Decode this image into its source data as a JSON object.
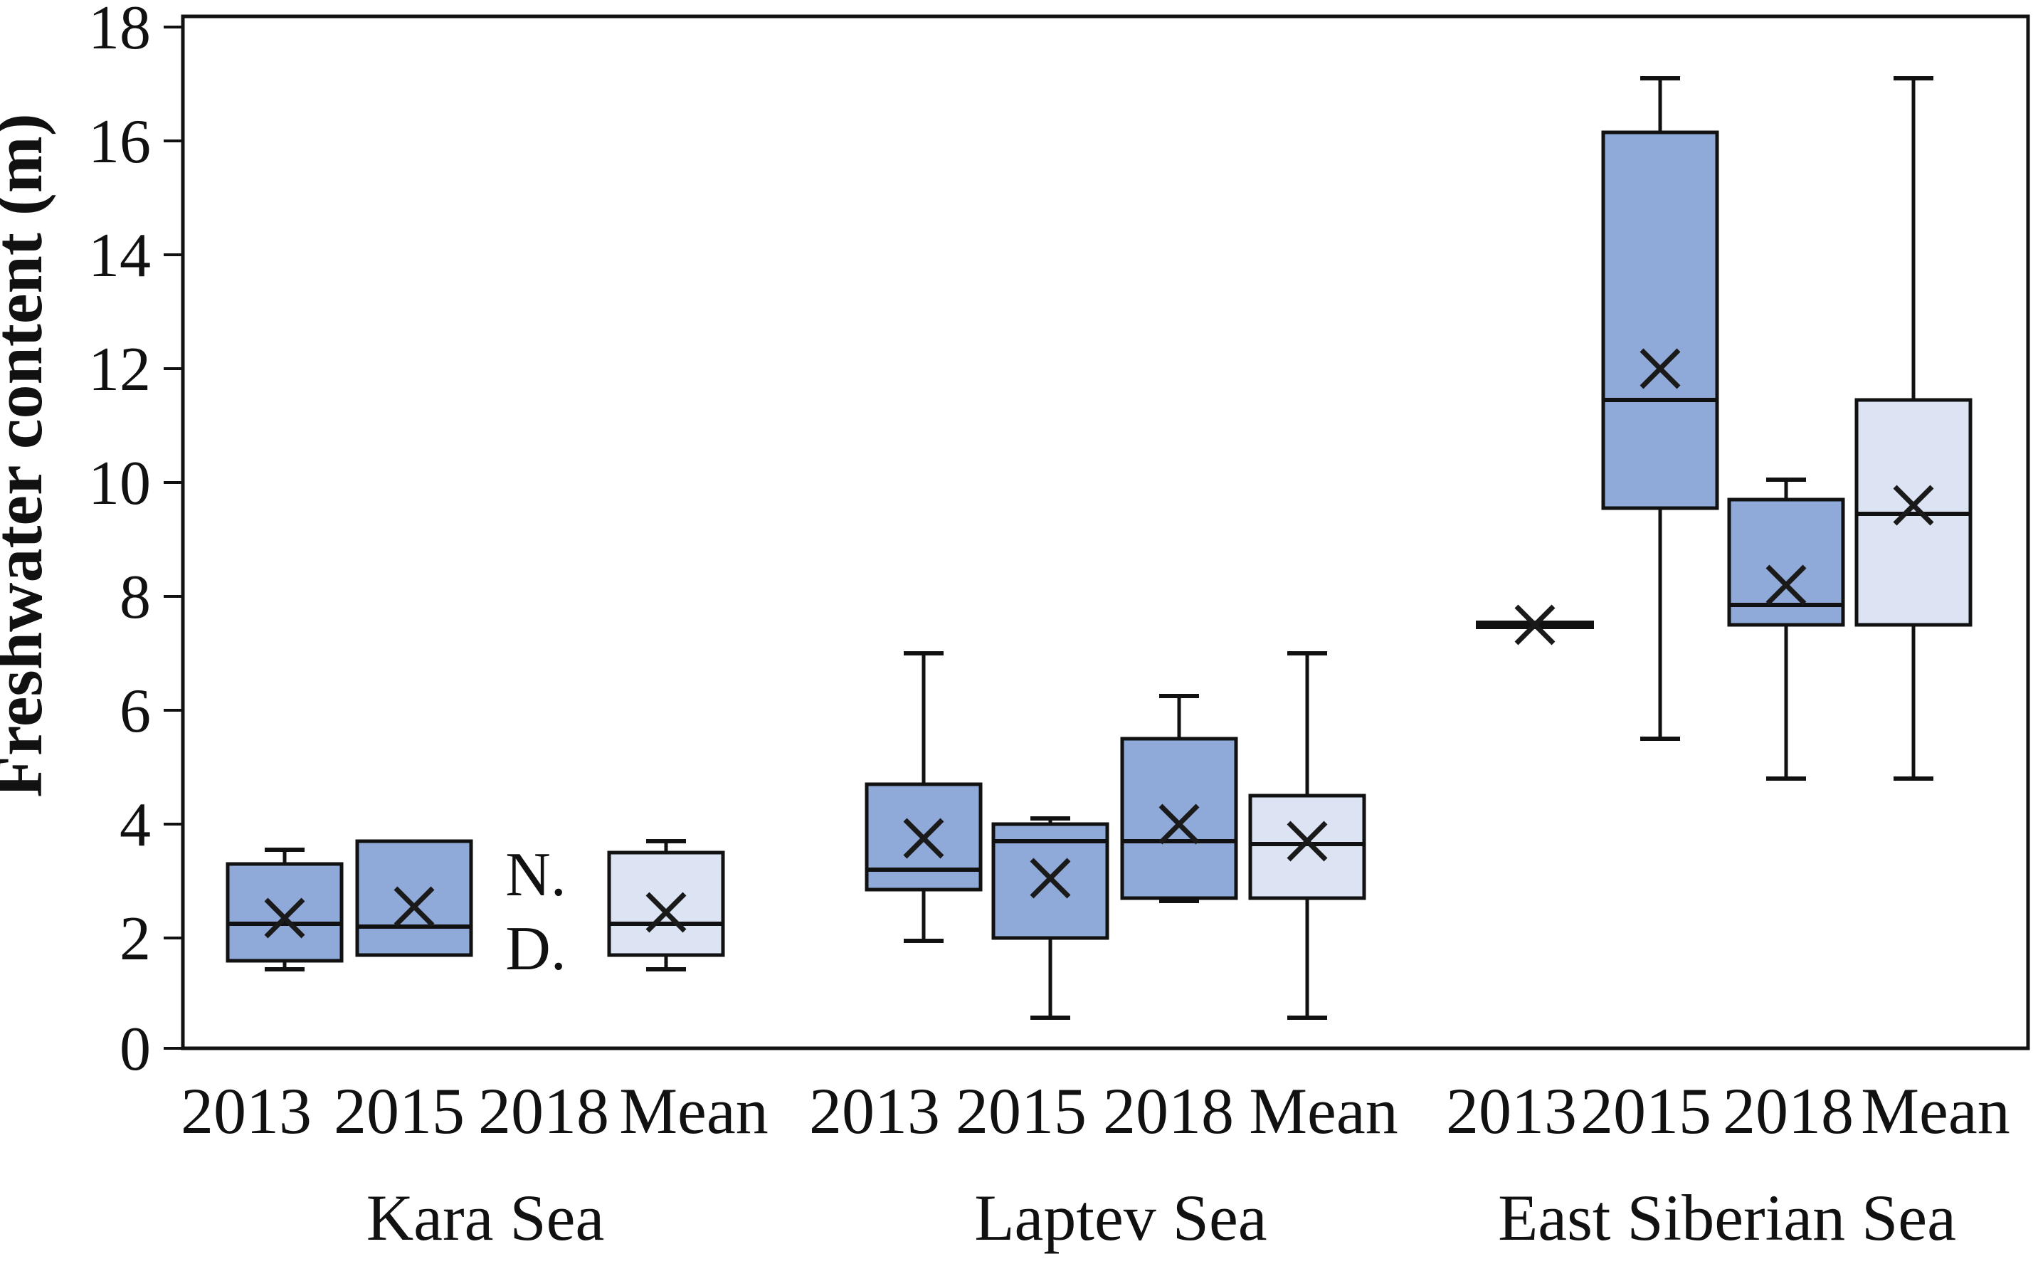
{
  "figure": {
    "background": "#ffffff",
    "description_title": ""
  },
  "chart_data": {
    "type": "box",
    "title": "",
    "xlabel": "",
    "ylabel": "Freshwater content (m)",
    "ylim": [
      0,
      18
    ],
    "ytick_step": 2,
    "ytick_labels": [
      "0",
      "2",
      "4",
      "6",
      "8",
      "10",
      "12",
      "14",
      "16",
      "18"
    ],
    "grid": false,
    "legend_position": "none",
    "no_data_note_lines": [
      "N.",
      "D."
    ],
    "colors": {
      "year_fill": "#8FA9D9",
      "mean_fill": "#DCE4F3",
      "stroke": "#111111",
      "text": "#111111",
      "frame": "#111111"
    },
    "groups": [
      {
        "sea": "Kara Sea",
        "boxes": [
          {
            "label": "2013",
            "kind": "year",
            "whisker_low": 1.45,
            "q1": 1.6,
            "median": 2.25,
            "q3": 3.3,
            "whisker_high": 3.55,
            "mean": 2.35
          },
          {
            "label": "2015",
            "kind": "year",
            "whisker_low": null,
            "q1": 1.7,
            "median": 2.2,
            "q3": 3.7,
            "whisker_high": null,
            "mean": 2.55
          },
          {
            "label": "2018",
            "kind": "nodata"
          },
          {
            "label": "Mean",
            "kind": "mean",
            "whisker_low": 1.45,
            "q1": 1.7,
            "median": 2.25,
            "q3": 3.5,
            "whisker_high": 3.7,
            "mean": 2.45
          }
        ]
      },
      {
        "sea": "Laptev Sea",
        "boxes": [
          {
            "label": "2013",
            "kind": "year",
            "whisker_low": 1.95,
            "q1": 2.85,
            "median": 3.2,
            "q3": 4.7,
            "whisker_high": 7.0,
            "mean": 3.75
          },
          {
            "label": "2015",
            "kind": "year",
            "whisker_low": 0.6,
            "q1": 2.0,
            "median": 3.7,
            "q3": 4.0,
            "whisker_high": 4.1,
            "mean": 3.05
          },
          {
            "label": "2018",
            "kind": "year",
            "whisker_low": 2.65,
            "q1": 2.7,
            "median": 3.7,
            "q3": 5.5,
            "whisker_high": 6.25,
            "mean": 4.0
          },
          {
            "label": "Mean",
            "kind": "mean",
            "whisker_low": 0.6,
            "q1": 2.7,
            "median": 3.65,
            "q3": 4.5,
            "whisker_high": 7.0,
            "mean": 3.7
          }
        ]
      },
      {
        "sea": "East Siberian Sea",
        "boxes": [
          {
            "label": "2013",
            "kind": "line",
            "median": 7.5,
            "mean": 7.5
          },
          {
            "label": "2015",
            "kind": "year",
            "whisker_low": 5.5,
            "q1": 9.55,
            "median": 11.45,
            "q3": 16.15,
            "whisker_high": 17.1,
            "mean": 12.0
          },
          {
            "label": "2018",
            "kind": "year",
            "whisker_low": 4.8,
            "q1": 7.5,
            "median": 7.85,
            "q3": 9.7,
            "whisker_high": 10.05,
            "mean": 8.2
          },
          {
            "label": "Mean",
            "kind": "mean",
            "whisker_low": 4.8,
            "q1": 7.5,
            "median": 9.45,
            "q3": 11.45,
            "whisker_high": 17.1,
            "mean": 9.6
          }
        ]
      }
    ]
  }
}
